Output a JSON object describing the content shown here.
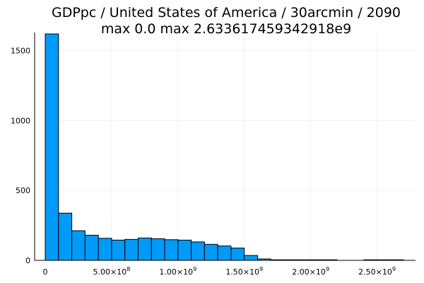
{
  "chart_data": {
    "type": "bar",
    "title": "GDPpc / United States of America / 30arcmin / 2090",
    "subtitle": "max 0.0  max 2.633617459342918e9",
    "bar_color": "#009af9",
    "bin_width": 100000000,
    "bins": [
      {
        "x0": 0,
        "x1": 100000000,
        "count": 1620
      },
      {
        "x0": 100000000,
        "x1": 200000000,
        "count": 338
      },
      {
        "x0": 200000000,
        "x1": 300000000,
        "count": 212
      },
      {
        "x0": 300000000,
        "x1": 400000000,
        "count": 180
      },
      {
        "x0": 400000000,
        "x1": 500000000,
        "count": 158
      },
      {
        "x0": 500000000,
        "x1": 600000000,
        "count": 145
      },
      {
        "x0": 600000000,
        "x1": 700000000,
        "count": 150
      },
      {
        "x0": 700000000,
        "x1": 800000000,
        "count": 160
      },
      {
        "x0": 800000000,
        "x1": 900000000,
        "count": 155
      },
      {
        "x0": 900000000,
        "x1": 1000000000,
        "count": 148
      },
      {
        "x0": 1000000000,
        "x1": 1100000000,
        "count": 145
      },
      {
        "x0": 1100000000,
        "x1": 1200000000,
        "count": 132
      },
      {
        "x0": 1200000000,
        "x1": 1300000000,
        "count": 115
      },
      {
        "x0": 1300000000,
        "x1": 1400000000,
        "count": 103
      },
      {
        "x0": 1400000000,
        "x1": 1500000000,
        "count": 88
      },
      {
        "x0": 1500000000,
        "x1": 1600000000,
        "count": 35
      },
      {
        "x0": 1600000000,
        "x1": 1700000000,
        "count": 10
      },
      {
        "x0": 1700000000,
        "x1": 1800000000,
        "count": 2
      },
      {
        "x0": 1800000000,
        "x1": 1900000000,
        "count": 1
      },
      {
        "x0": 1900000000,
        "x1": 2000000000,
        "count": 1
      },
      {
        "x0": 2000000000,
        "x1": 2100000000,
        "count": 1
      },
      {
        "x0": 2100000000,
        "x1": 2200000000,
        "count": 1
      },
      {
        "x0": 2200000000,
        "x1": 2300000000,
        "count": 0
      },
      {
        "x0": 2300000000,
        "x1": 2400000000,
        "count": 0
      },
      {
        "x0": 2400000000,
        "x1": 2500000000,
        "count": 1
      },
      {
        "x0": 2500000000,
        "x1": 2600000000,
        "count": 1
      },
      {
        "x0": 2600000000,
        "x1": 2700000000,
        "count": 1
      }
    ],
    "xlim": [
      -80000000,
      2790000000
    ],
    "ylim": [
      0,
      1630
    ],
    "x_ticks": [
      {
        "value": 0,
        "mantissa": "0",
        "exp": ""
      },
      {
        "value": 500000000,
        "mantissa": "5.00×10",
        "exp": "8"
      },
      {
        "value": 1000000000,
        "mantissa": "1.00×10",
        "exp": "9"
      },
      {
        "value": 1500000000,
        "mantissa": "1.50×10",
        "exp": "9"
      },
      {
        "value": 2000000000,
        "mantissa": "2.00×10",
        "exp": "9"
      },
      {
        "value": 2500000000,
        "mantissa": "2.50×10",
        "exp": "9"
      }
    ],
    "y_ticks": [
      {
        "value": 0,
        "label": "0"
      },
      {
        "value": 500,
        "label": "500"
      },
      {
        "value": 1000,
        "label": "1000"
      },
      {
        "value": 1500,
        "label": "1500"
      }
    ],
    "grid": true,
    "legend": "none"
  }
}
